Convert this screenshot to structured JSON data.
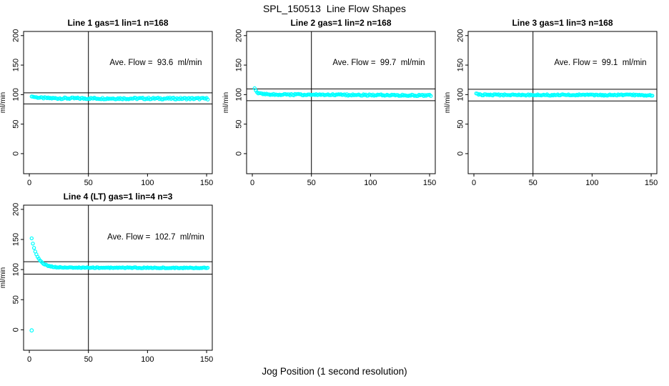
{
  "page": {
    "title": "SPL_150513  Line Flow Shapes",
    "x_axis_label": "Jog Position (1 second resolution)"
  },
  "chart_data": {
    "type": "scatter",
    "title": "SPL_150513  Line Flow Shapes",
    "xlabel": "Jog Position (1 second resolution)",
    "ylabel": "ml/min",
    "xlim": [
      -4.85,
      154.8
    ],
    "ylim": [
      -34,
      207
    ],
    "x_ticks": [
      0,
      50,
      100,
      150
    ],
    "y_ticks": [
      0,
      50,
      100,
      150,
      200
    ],
    "grid": false,
    "point_color": "#00ffff",
    "axis_color": "#000000",
    "annotation_anchor": {
      "x": 107,
      "y": 150
    },
    "panels": [
      {
        "title": "Line 1 gas=1 lin=1 n=168",
        "line": "Line 1",
        "gas": 1,
        "lin": 1,
        "n": 168,
        "annotation": "Ave. Flow =  93.6  ml/min",
        "ave_flow_ml_min": 93.6,
        "ref_lines": [
          103.0,
          84.2
        ],
        "vline_x": 50,
        "series": {
          "x_start": 2,
          "x_end": 151,
          "x_step": 1,
          "y_start": 97.0,
          "y_settle": 93.8,
          "tau": 6,
          "drift": -0.6,
          "noise_amp": 1.5
        },
        "outliers": []
      },
      {
        "title": "Line 2 gas=1 lin=2 n=168",
        "line": "Line 2",
        "gas": 1,
        "lin": 2,
        "n": 168,
        "annotation": "Ave. Flow =  99.7  ml/min",
        "ave_flow_ml_min": 99.7,
        "ref_lines": [
          109.7,
          89.7
        ],
        "vline_x": 50,
        "series": {
          "x_start": 2,
          "x_end": 151,
          "x_step": 1,
          "y_start": 110.5,
          "y_settle": 100.3,
          "tau": 2.2,
          "drift": -1.6,
          "noise_amp": 1.2
        },
        "outliers": []
      },
      {
        "title": "Line 3 gas=1 lin=3 n=168",
        "line": "Line 3",
        "gas": 1,
        "lin": 3,
        "n": 168,
        "annotation": "Ave. Flow =  99.1  ml/min",
        "ave_flow_ml_min": 99.1,
        "ref_lines": [
          109.0,
          89.2
        ],
        "vline_x": 50,
        "series": {
          "x_start": 2,
          "x_end": 151,
          "x_step": 1,
          "y_start": 102.0,
          "y_settle": 99.6,
          "tau": 2,
          "drift": -0.4,
          "noise_amp": 1.1
        },
        "outliers": []
      },
      {
        "title": "Line 4 (LT) gas=1 lin=4 n=3",
        "line": "Line 4 (LT)",
        "gas": 1,
        "lin": 4,
        "n": 3,
        "annotation": "Ave. Flow =  102.7  ml/min",
        "ave_flow_ml_min": 102.7,
        "ref_lines": [
          113.0,
          92.4
        ],
        "vline_x": 50,
        "series": {
          "x_start": 2,
          "x_end": 151,
          "x_step": 1,
          "y_start": 152.0,
          "y_settle": 103.3,
          "tau": 5,
          "drift": -0.5,
          "noise_amp": 0.7
        },
        "outliers": [
          [
            2,
            -1
          ]
        ]
      }
    ]
  }
}
